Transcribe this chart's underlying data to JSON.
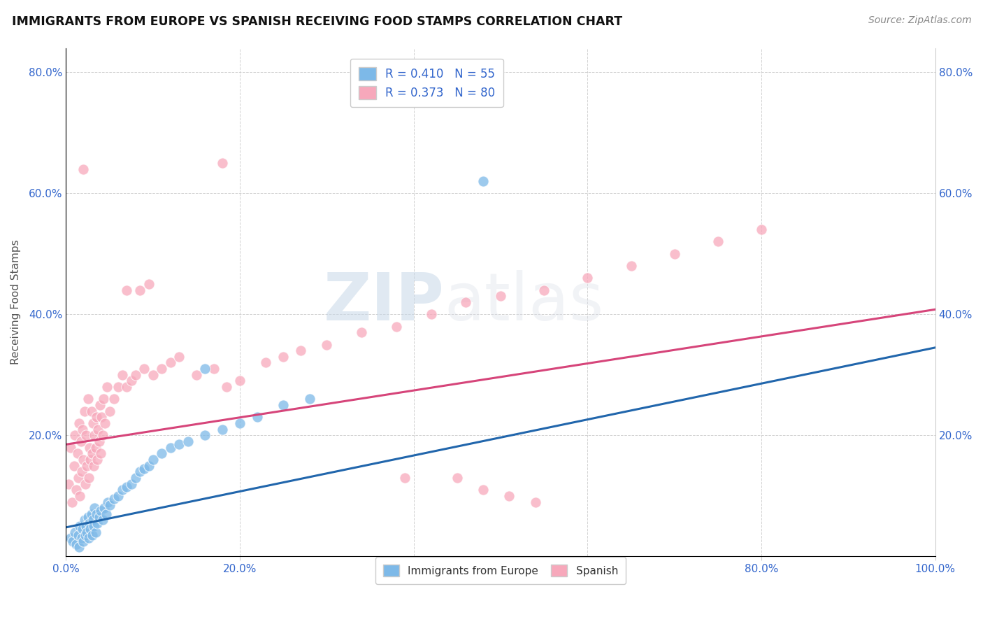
{
  "title": "IMMIGRANTS FROM EUROPE VS SPANISH RECEIVING FOOD STAMPS CORRELATION CHART",
  "source": "Source: ZipAtlas.com",
  "xlabel": "",
  "ylabel": "Receiving Food Stamps",
  "xlim": [
    0.0,
    1.0
  ],
  "ylim": [
    0.0,
    0.84
  ],
  "xticks": [
    0.0,
    0.2,
    0.4,
    0.6,
    0.8,
    1.0
  ],
  "xtick_labels": [
    "0.0%",
    "20.0%",
    "40.0%",
    "60.0%",
    "80.0%",
    "100.0%"
  ],
  "yticks": [
    0.0,
    0.2,
    0.4,
    0.6,
    0.8
  ],
  "ytick_labels": [
    "",
    "20.0%",
    "40.0%",
    "60.0%",
    "80.0%"
  ],
  "legend1_label": "R = 0.410   N = 55",
  "legend2_label": "R = 0.373   N = 80",
  "legend_x_label": "Immigrants from Europe",
  "legend_y_label": "Spanish",
  "blue_color": "#7db9e8",
  "pink_color": "#f7a8bb",
  "blue_line_color": "#2166ac",
  "pink_line_color": "#d6457a",
  "watermark_zip": "ZIP",
  "watermark_atlas": "atlas",
  "blue_scatter_x": [
    0.005,
    0.008,
    0.01,
    0.012,
    0.014,
    0.015,
    0.016,
    0.018,
    0.019,
    0.02,
    0.021,
    0.022,
    0.023,
    0.024,
    0.025,
    0.026,
    0.027,
    0.028,
    0.029,
    0.03,
    0.031,
    0.032,
    0.033,
    0.034,
    0.035,
    0.036,
    0.038,
    0.04,
    0.042,
    0.044,
    0.046,
    0.048,
    0.05,
    0.055,
    0.06,
    0.065,
    0.07,
    0.075,
    0.08,
    0.085,
    0.09,
    0.095,
    0.1,
    0.11,
    0.12,
    0.13,
    0.14,
    0.16,
    0.18,
    0.2,
    0.22,
    0.25,
    0.28,
    0.48,
    0.16
  ],
  "blue_scatter_y": [
    0.03,
    0.025,
    0.04,
    0.02,
    0.035,
    0.015,
    0.05,
    0.03,
    0.045,
    0.025,
    0.06,
    0.035,
    0.05,
    0.04,
    0.065,
    0.03,
    0.055,
    0.045,
    0.07,
    0.035,
    0.06,
    0.05,
    0.08,
    0.04,
    0.07,
    0.055,
    0.065,
    0.075,
    0.06,
    0.08,
    0.07,
    0.09,
    0.085,
    0.095,
    0.1,
    0.11,
    0.115,
    0.12,
    0.13,
    0.14,
    0.145,
    0.15,
    0.16,
    0.17,
    0.18,
    0.185,
    0.19,
    0.2,
    0.21,
    0.22,
    0.23,
    0.25,
    0.26,
    0.62,
    0.31
  ],
  "pink_scatter_x": [
    0.003,
    0.005,
    0.007,
    0.009,
    0.01,
    0.012,
    0.013,
    0.014,
    0.015,
    0.016,
    0.017,
    0.018,
    0.019,
    0.02,
    0.021,
    0.022,
    0.023,
    0.024,
    0.025,
    0.026,
    0.027,
    0.028,
    0.029,
    0.03,
    0.031,
    0.032,
    0.033,
    0.034,
    0.035,
    0.036,
    0.037,
    0.038,
    0.039,
    0.04,
    0.041,
    0.042,
    0.043,
    0.045,
    0.047,
    0.05,
    0.055,
    0.06,
    0.065,
    0.07,
    0.075,
    0.08,
    0.09,
    0.1,
    0.11,
    0.12,
    0.13,
    0.15,
    0.17,
    0.185,
    0.2,
    0.23,
    0.25,
    0.27,
    0.3,
    0.34,
    0.38,
    0.42,
    0.46,
    0.5,
    0.55,
    0.6,
    0.65,
    0.7,
    0.75,
    0.8,
    0.18,
    0.02,
    0.39,
    0.45,
    0.48,
    0.51,
    0.54,
    0.07,
    0.085,
    0.095
  ],
  "pink_scatter_y": [
    0.12,
    0.18,
    0.09,
    0.15,
    0.2,
    0.11,
    0.17,
    0.13,
    0.22,
    0.1,
    0.19,
    0.14,
    0.21,
    0.16,
    0.24,
    0.12,
    0.2,
    0.15,
    0.26,
    0.13,
    0.18,
    0.16,
    0.24,
    0.17,
    0.22,
    0.15,
    0.2,
    0.18,
    0.23,
    0.16,
    0.21,
    0.19,
    0.25,
    0.17,
    0.23,
    0.2,
    0.26,
    0.22,
    0.28,
    0.24,
    0.26,
    0.28,
    0.3,
    0.28,
    0.29,
    0.3,
    0.31,
    0.3,
    0.31,
    0.32,
    0.33,
    0.3,
    0.31,
    0.28,
    0.29,
    0.32,
    0.33,
    0.34,
    0.35,
    0.37,
    0.38,
    0.4,
    0.42,
    0.43,
    0.44,
    0.46,
    0.48,
    0.5,
    0.52,
    0.54,
    0.65,
    0.64,
    0.13,
    0.13,
    0.11,
    0.1,
    0.09,
    0.44,
    0.44,
    0.45
  ],
  "blue_trendline_x": [
    0.0,
    1.0
  ],
  "blue_trendline_y": [
    0.048,
    0.345
  ],
  "pink_trendline_x": [
    0.0,
    1.0
  ],
  "pink_trendline_y": [
    0.185,
    0.408
  ]
}
